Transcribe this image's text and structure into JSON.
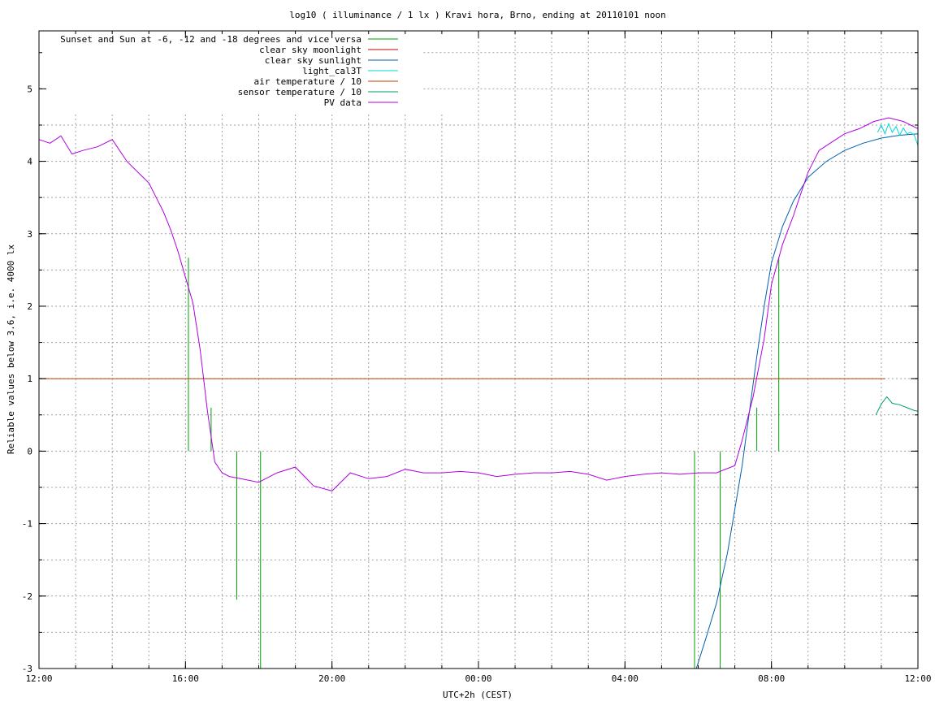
{
  "chart_data": {
    "type": "line",
    "title": "log10 ( illuminance / 1 lx ) Kravi hora, Brno, ending at 20110101 noon",
    "xlabel": "UTC+2h (CEST)",
    "ylabel": "Reliable values below 3.6, i.e. 4000 lx",
    "xlim": [
      0,
      24
    ],
    "ylim": [
      -3,
      5.8
    ],
    "x_ticks": [
      {
        "value": 0,
        "label": "12:00"
      },
      {
        "value": 4,
        "label": "16:00"
      },
      {
        "value": 8,
        "label": "20:00"
      },
      {
        "value": 12,
        "label": "00:00"
      },
      {
        "value": 16,
        "label": "04:00"
      },
      {
        "value": 20,
        "label": "08:00"
      },
      {
        "value": 24,
        "label": "12:00"
      }
    ],
    "y_ticks": [
      {
        "value": -3,
        "label": "-3"
      },
      {
        "value": -2,
        "label": "-2"
      },
      {
        "value": -1,
        "label": "-1"
      },
      {
        "value": 0,
        "label": "0"
      },
      {
        "value": 1,
        "label": "1"
      },
      {
        "value": 2,
        "label": "2"
      },
      {
        "value": 3,
        "label": "3"
      },
      {
        "value": 4,
        "label": "4"
      },
      {
        "value": 5,
        "label": "5"
      }
    ],
    "grid": true,
    "legend_position": "top-left",
    "series": [
      {
        "name": "Sunset and Sun at -6, -12 and -18 degrees and vice versa",
        "color": "#00a000",
        "style": "impulses",
        "x": [
          4.08,
          4.7,
          5.4,
          6.05,
          17.9,
          18.6,
          19.6,
          20.2
        ],
        "y": [
          2.67,
          0.6,
          -2.05,
          -3,
          -3,
          -3,
          0.6,
          2.67
        ]
      },
      {
        "name": "clear sky moonlight",
        "color": "#c00000",
        "style": "line",
        "x": [],
        "y": []
      },
      {
        "name": "clear sky sunlight",
        "color": "#0060ad",
        "style": "line",
        "x": [
          17.95,
          18.2,
          18.5,
          18.8,
          19.0,
          19.2,
          19.4,
          19.6,
          19.8,
          20.0,
          20.3,
          20.6,
          21.0,
          21.5,
          22.0,
          22.5,
          23.0,
          23.5,
          24.0
        ],
        "y": [
          -3.0,
          -2.6,
          -2.1,
          -1.4,
          -0.8,
          -0.2,
          0.55,
          1.3,
          2.0,
          2.6,
          3.1,
          3.45,
          3.78,
          4.0,
          4.15,
          4.25,
          4.32,
          4.36,
          4.38
        ]
      },
      {
        "name": "light_cal3T",
        "color": "#00d8d8",
        "style": "line",
        "x": [
          22.9,
          23.0,
          23.1,
          23.2,
          23.3,
          23.4,
          23.5,
          23.6,
          23.7,
          23.8,
          23.9,
          24.0
        ],
        "y": [
          4.4,
          4.5,
          4.38,
          4.52,
          4.4,
          4.48,
          4.36,
          4.46,
          4.38,
          4.4,
          4.36,
          4.22
        ]
      },
      {
        "name": "air temperature / 10",
        "color": "#c04000",
        "style": "line",
        "x": [
          0,
          23.1
        ],
        "y": [
          1.0,
          1.0
        ]
      },
      {
        "name": "sensor temperature / 10",
        "color": "#00a060",
        "style": "line",
        "x": [
          22.85,
          23.0,
          23.15,
          23.3,
          23.5,
          23.7,
          23.9,
          24.0
        ],
        "y": [
          0.5,
          0.65,
          0.75,
          0.66,
          0.64,
          0.6,
          0.56,
          0.55
        ]
      },
      {
        "name": "PV data",
        "color": "#b000e0",
        "style": "line",
        "x": [
          0,
          0.3,
          0.6,
          0.9,
          1.2,
          1.6,
          2.0,
          2.4,
          2.8,
          3.0,
          3.2,
          3.4,
          3.6,
          3.8,
          4.0,
          4.2,
          4.4,
          4.6,
          4.8,
          5.0,
          5.2,
          5.5,
          6.0,
          6.5,
          7.0,
          7.5,
          8.0,
          8.5,
          9.0,
          9.5,
          10.0,
          10.5,
          11.0,
          11.5,
          12.0,
          12.5,
          13.0,
          13.5,
          14.0,
          14.5,
          15.0,
          15.5,
          16.0,
          16.5,
          17.0,
          17.5,
          18.0,
          18.5,
          19.0,
          19.2,
          19.5,
          19.8,
          20.0,
          20.3,
          20.6,
          20.8,
          21.0,
          21.3,
          21.6,
          22.0,
          22.4,
          22.8,
          23.2,
          23.6,
          24.0
        ],
        "y": [
          4.3,
          4.25,
          4.35,
          4.1,
          4.15,
          4.2,
          4.3,
          4.0,
          3.8,
          3.7,
          3.5,
          3.3,
          3.05,
          2.75,
          2.4,
          2.05,
          1.4,
          0.55,
          -0.15,
          -0.3,
          -0.35,
          -0.38,
          -0.43,
          -0.3,
          -0.22,
          -0.48,
          -0.55,
          -0.3,
          -0.38,
          -0.35,
          -0.25,
          -0.3,
          -0.3,
          -0.28,
          -0.3,
          -0.35,
          -0.32,
          -0.3,
          -0.3,
          -0.28,
          -0.32,
          -0.4,
          -0.35,
          -0.32,
          -0.3,
          -0.32,
          -0.3,
          -0.3,
          -0.2,
          0.15,
          0.75,
          1.55,
          2.3,
          2.85,
          3.25,
          3.55,
          3.85,
          4.15,
          4.25,
          4.38,
          4.45,
          4.55,
          4.6,
          4.55,
          4.45
        ]
      }
    ]
  }
}
